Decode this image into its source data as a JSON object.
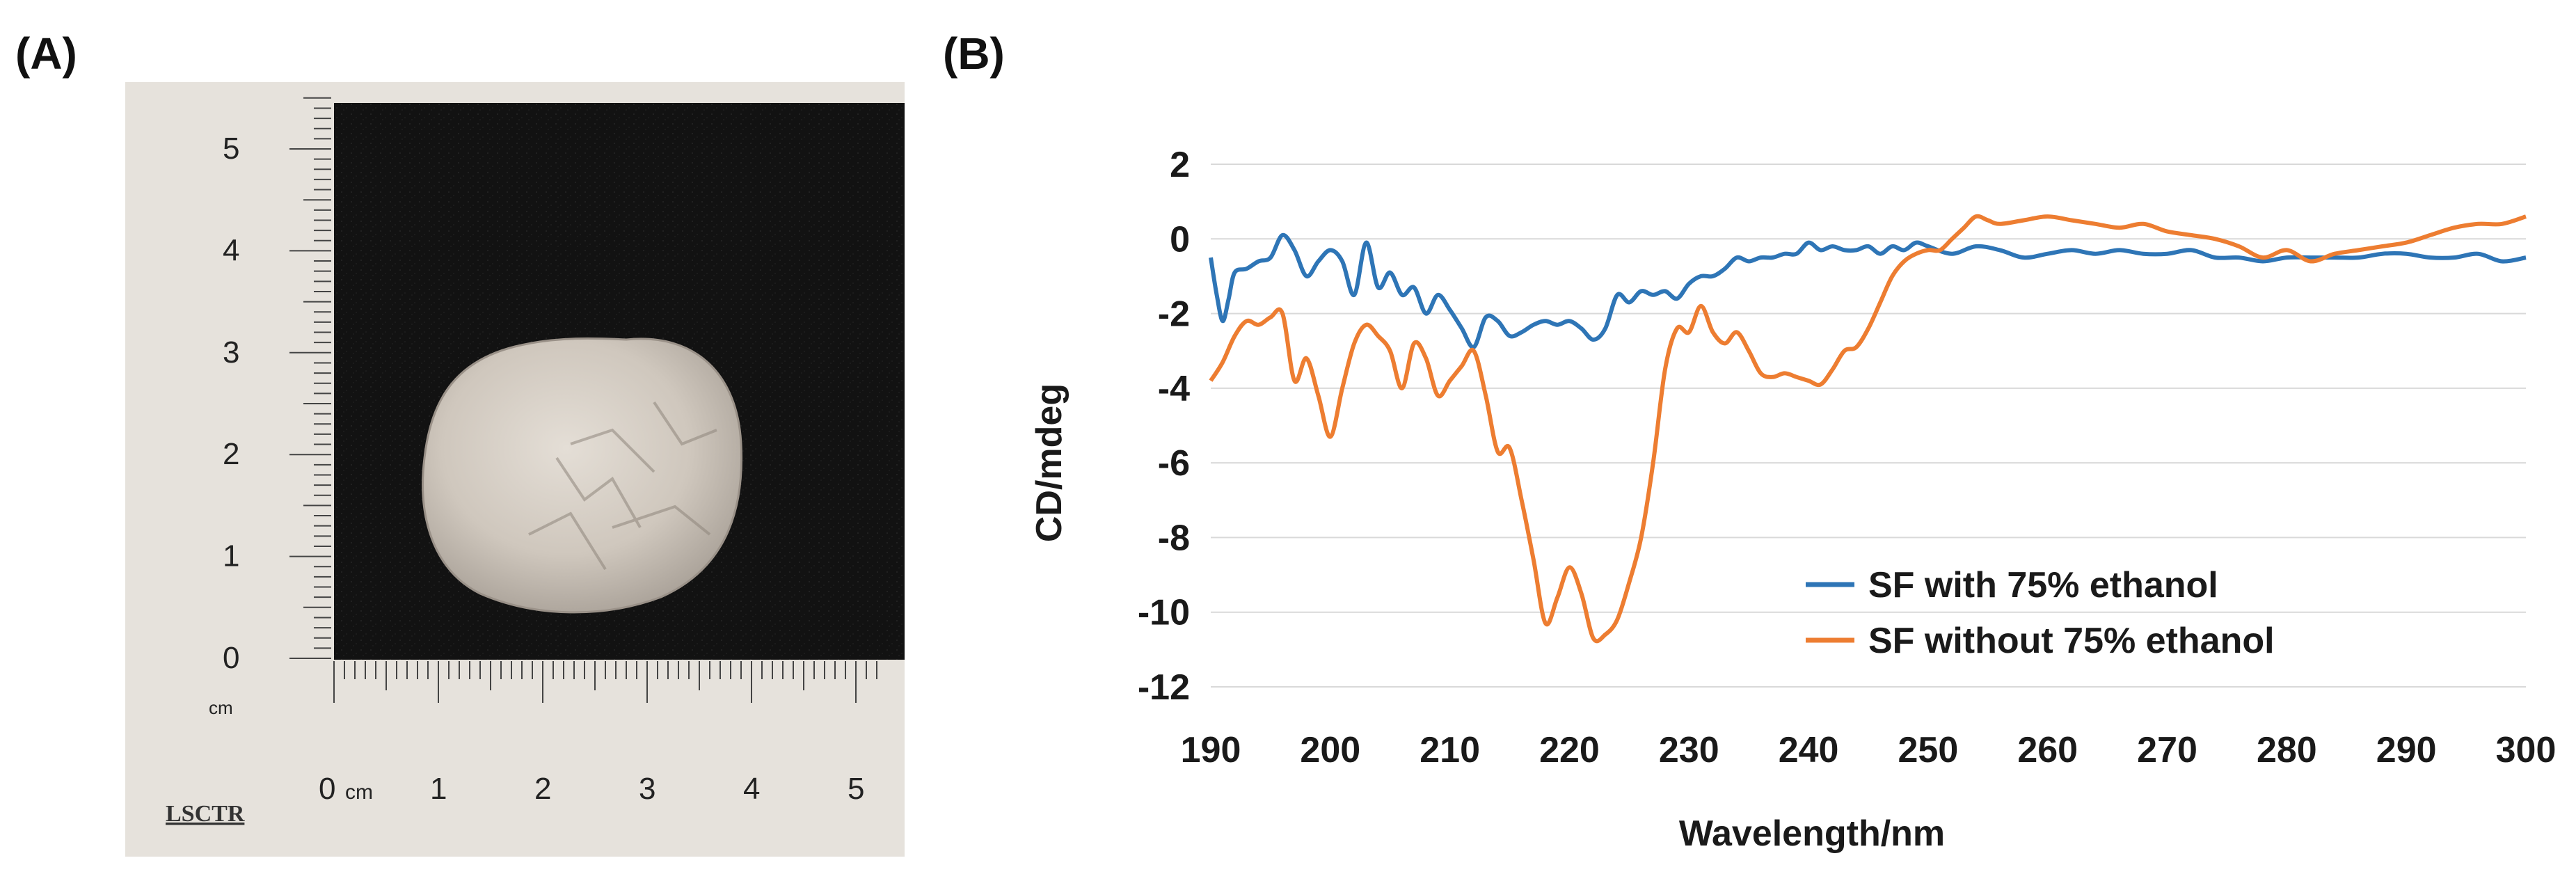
{
  "panels": {
    "a_label": "(A)",
    "b_label": "(B)"
  },
  "photo": {
    "ruler_vertical_labels": [
      "0",
      "1",
      "2",
      "3",
      "4",
      "5"
    ],
    "ruler_vertical_unit": "cm",
    "ruler_horizontal_labels": [
      "0",
      "1",
      "2",
      "3",
      "4",
      "5"
    ],
    "ruler_horizontal_unit": "cm",
    "brand": "LSCTR",
    "colors": {
      "paper": "#e6e2dc",
      "background": "#121212",
      "sample": "#cbc4bb"
    }
  },
  "chart_data": {
    "type": "line",
    "title": "",
    "xlabel": "Wavelength/nm",
    "ylabel": "CD/mdeg",
    "xlim": [
      190,
      300
    ],
    "ylim": [
      -12,
      2
    ],
    "xticks": [
      190,
      200,
      210,
      220,
      230,
      240,
      250,
      260,
      270,
      280,
      290,
      300
    ],
    "yticks": [
      -12,
      -10,
      -8,
      -6,
      -4,
      -2,
      0,
      2
    ],
    "grid": "horizontal",
    "legend_position": "bottom-right",
    "series": [
      {
        "name": "SF with 75% ethanol",
        "color": "#2e75b6",
        "x": [
          190,
          190.5,
          191,
          191.5,
          192,
          193,
          194,
          195,
          196,
          197,
          198,
          199,
          200,
          201,
          202,
          203,
          204,
          205,
          206,
          207,
          208,
          209,
          210,
          211,
          212,
          213,
          214,
          215,
          216,
          217,
          218,
          219,
          220,
          221,
          222,
          223,
          224,
          225,
          226,
          227,
          228,
          229,
          230,
          231,
          232,
          233,
          234,
          235,
          236,
          237,
          238,
          239,
          240,
          241,
          242,
          243,
          244,
          245,
          246,
          247,
          248,
          249,
          250,
          252,
          254,
          256,
          258,
          260,
          262,
          264,
          266,
          268,
          270,
          272,
          274,
          276,
          278,
          280,
          282,
          284,
          286,
          288,
          290,
          292,
          294,
          296,
          298,
          300
        ],
        "y": [
          -0.5,
          -1.5,
          -2.2,
          -1.6,
          -0.9,
          -0.8,
          -0.6,
          -0.5,
          0.1,
          -0.3,
          -1.0,
          -0.6,
          -0.3,
          -0.6,
          -1.5,
          -0.1,
          -1.3,
          -0.9,
          -1.5,
          -1.3,
          -2.0,
          -1.5,
          -1.9,
          -2.4,
          -2.9,
          -2.1,
          -2.2,
          -2.6,
          -2.5,
          -2.3,
          -2.2,
          -2.3,
          -2.2,
          -2.4,
          -2.7,
          -2.4,
          -1.5,
          -1.7,
          -1.4,
          -1.5,
          -1.4,
          -1.6,
          -1.2,
          -1.0,
          -1.0,
          -0.8,
          -0.5,
          -0.6,
          -0.5,
          -0.5,
          -0.4,
          -0.4,
          -0.1,
          -0.3,
          -0.2,
          -0.3,
          -0.3,
          -0.2,
          -0.4,
          -0.2,
          -0.3,
          -0.1,
          -0.2,
          -0.4,
          -0.2,
          -0.3,
          -0.5,
          -0.4,
          -0.3,
          -0.4,
          -0.3,
          -0.4,
          -0.4,
          -0.3,
          -0.5,
          -0.5,
          -0.6,
          -0.5,
          -0.5,
          -0.5,
          -0.5,
          -0.4,
          -0.4,
          -0.5,
          -0.5,
          -0.4,
          -0.6,
          -0.5
        ]
      },
      {
        "name": "SF without 75% ethanol",
        "color": "#ed7d31",
        "x": [
          190,
          191,
          192,
          193,
          194,
          195,
          196,
          197,
          198,
          199,
          200,
          201,
          202,
          203,
          204,
          205,
          206,
          207,
          208,
          209,
          210,
          211,
          212,
          213,
          214,
          215,
          216,
          217,
          218,
          219,
          220,
          221,
          222,
          223,
          224,
          225,
          226,
          227,
          228,
          229,
          230,
          231,
          232,
          233,
          234,
          235,
          236,
          237,
          238,
          239,
          240,
          241,
          242,
          243,
          244,
          245,
          246,
          247,
          248,
          249,
          250,
          251,
          252,
          253,
          254,
          255,
          256,
          258,
          260,
          262,
          264,
          266,
          268,
          270,
          272,
          274,
          276,
          278,
          280,
          282,
          284,
          286,
          288,
          290,
          292,
          294,
          296,
          298,
          300
        ],
        "y": [
          -3.8,
          -3.3,
          -2.6,
          -2.2,
          -2.3,
          -2.1,
          -2.0,
          -3.8,
          -3.2,
          -4.2,
          -5.3,
          -4.0,
          -2.8,
          -2.3,
          -2.6,
          -3.0,
          -4.0,
          -2.8,
          -3.2,
          -4.2,
          -3.8,
          -3.4,
          -3.0,
          -4.2,
          -5.7,
          -5.6,
          -7.0,
          -8.6,
          -10.3,
          -9.6,
          -8.8,
          -9.5,
          -10.7,
          -10.6,
          -10.2,
          -9.2,
          -8.0,
          -6.0,
          -3.5,
          -2.4,
          -2.5,
          -1.8,
          -2.5,
          -2.8,
          -2.5,
          -3.0,
          -3.6,
          -3.7,
          -3.6,
          -3.7,
          -3.8,
          -3.9,
          -3.5,
          -3.0,
          -2.9,
          -2.4,
          -1.7,
          -1.0,
          -0.6,
          -0.4,
          -0.3,
          -0.3,
          0.0,
          0.3,
          0.6,
          0.5,
          0.4,
          0.5,
          0.6,
          0.5,
          0.4,
          0.3,
          0.4,
          0.2,
          0.1,
          0.0,
          -0.2,
          -0.5,
          -0.3,
          -0.6,
          -0.4,
          -0.3,
          -0.2,
          -0.1,
          0.1,
          0.3,
          0.4,
          0.4,
          0.6
        ]
      }
    ]
  }
}
